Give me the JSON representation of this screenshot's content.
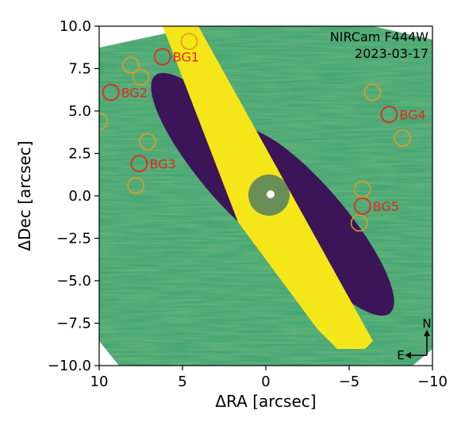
{
  "figure": {
    "instrument_label": "NIRCam F444W",
    "date_label": "2023-03-17",
    "x_axis_label": "ΔRA [arcsec]",
    "y_axis_label": "ΔDec [arcsec]",
    "x_range": [
      10,
      -10
    ],
    "y_range": [
      -10,
      10
    ],
    "x_ticks": [
      "10",
      "5",
      "0",
      "−5",
      "−10"
    ],
    "y_ticks": [
      "10.0",
      "7.5",
      "5.0",
      "2.5",
      "0.0",
      "−2.5",
      "−5.0",
      "−7.5",
      "−10.0"
    ],
    "compass": {
      "north": "N",
      "east": "E"
    },
    "colors": {
      "background": "#3aa070",
      "disk": "#f5e61a",
      "shadow": "#3b1558",
      "labeled_circle": "#e8261c",
      "unlabeled_circle": "#e49a20"
    },
    "labeled_sources": [
      {
        "label": "BG1",
        "ra": 6.2,
        "dec": 8.2
      },
      {
        "label": "BG2",
        "ra": 9.3,
        "dec": 6.1
      },
      {
        "label": "BG3",
        "ra": 7.6,
        "dec": 1.9
      },
      {
        "label": "BG4",
        "ra": -7.4,
        "dec": 4.8
      },
      {
        "label": "BG5",
        "ra": -5.8,
        "dec": -0.6
      }
    ],
    "unlabeled_sources": [
      {
        "ra": 4.6,
        "dec": 9.1
      },
      {
        "ra": 8.1,
        "dec": 7.7
      },
      {
        "ra": 7.5,
        "dec": 7.0
      },
      {
        "ra": 10.0,
        "dec": 4.4
      },
      {
        "ra": 7.1,
        "dec": 3.2
      },
      {
        "ra": 7.8,
        "dec": 0.6
      },
      {
        "ra": -6.4,
        "dec": 6.1
      },
      {
        "ra": -8.2,
        "dec": 3.4
      },
      {
        "ra": -5.8,
        "dec": 0.4
      },
      {
        "ra": -5.6,
        "dec": -1.6
      }
    ]
  }
}
